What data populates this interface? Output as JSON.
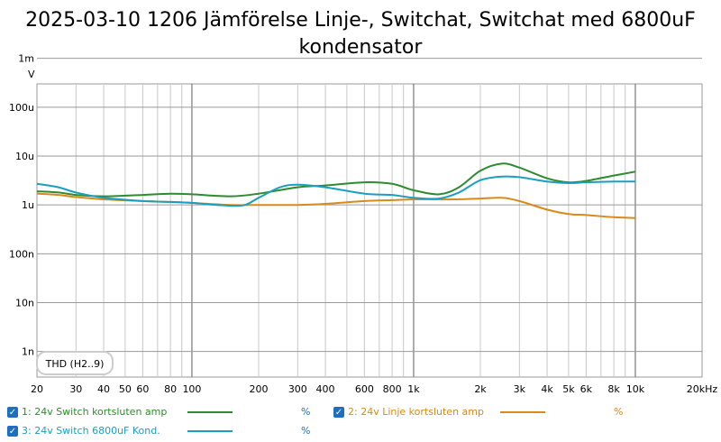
{
  "chart_data": {
    "type": "line",
    "title_line1": "2025-03-10 1206 Jämförelse Linje-, Switchat, Switchat med 6800uF",
    "title_line2": "kondensator",
    "ylabel": "V",
    "xscale": "log",
    "yscale": "log",
    "xlim": [
      20,
      20000
    ],
    "ylim": [
      3e-10,
      0.0003
    ],
    "x_ticks": [
      {
        "v": 20,
        "label": "20"
      },
      {
        "v": 30,
        "label": "30"
      },
      {
        "v": 40,
        "label": "40"
      },
      {
        "v": 50,
        "label": "50"
      },
      {
        "v": 60,
        "label": "60"
      },
      {
        "v": 80,
        "label": "80"
      },
      {
        "v": 100,
        "label": "100"
      },
      {
        "v": 200,
        "label": "200"
      },
      {
        "v": 300,
        "label": "300"
      },
      {
        "v": 400,
        "label": "400"
      },
      {
        "v": 600,
        "label": "600"
      },
      {
        "v": 800,
        "label": "800"
      },
      {
        "v": 1000,
        "label": "1k"
      },
      {
        "v": 2000,
        "label": "2k"
      },
      {
        "v": 3000,
        "label": "3k"
      },
      {
        "v": 4000,
        "label": "4k"
      },
      {
        "v": 5000,
        "label": "5k"
      },
      {
        "v": 6000,
        "label": "6k"
      },
      {
        "v": 8000,
        "label": "8k"
      },
      {
        "v": 10000,
        "label": "10k"
      },
      {
        "v": 20000,
        "label": "20kHz"
      }
    ],
    "x_minor": [
      70,
      90,
      500,
      700,
      900,
      7000,
      9000
    ],
    "y_ticks": [
      {
        "v": 1e-09,
        "label": "1n"
      },
      {
        "v": 1e-08,
        "label": "10n"
      },
      {
        "v": 1e-07,
        "label": "100n"
      },
      {
        "v": 1e-06,
        "label": "1u"
      },
      {
        "v": 1e-05,
        "label": "10u"
      },
      {
        "v": 0.0001,
        "label": "100u"
      },
      {
        "v": 0.001,
        "label": "1m"
      }
    ],
    "badge": "THD (H2..9)",
    "series": [
      {
        "name": "1: 24v Switch kortsluten amp",
        "unit": "%",
        "color": "#2e8b2e",
        "x": [
          20,
          25,
          30,
          40,
          60,
          80,
          100,
          150,
          200,
          300,
          400,
          600,
          800,
          1000,
          1300,
          1600,
          2000,
          2500,
          3000,
          4000,
          5000,
          6000,
          8000,
          10000
        ],
        "y": [
          1.9e-06,
          1.8e-06,
          1.6e-06,
          1.5e-06,
          1.6e-06,
          1.7e-06,
          1.65e-06,
          1.5e-06,
          1.7e-06,
          2.3e-06,
          2.5e-06,
          2.9e-06,
          2.7e-06,
          2e-06,
          1.65e-06,
          2.3e-06,
          5e-06,
          7e-06,
          5.8e-06,
          3.5e-06,
          2.9e-06,
          3.1e-06,
          4e-06,
          4.8e-06
        ]
      },
      {
        "name": "2: 24v Linje kortsluten amp",
        "unit": "%",
        "color": "#d88a1a",
        "x": [
          20,
          25,
          30,
          40,
          60,
          80,
          100,
          150,
          200,
          300,
          400,
          600,
          800,
          1000,
          1500,
          2000,
          2500,
          3000,
          4000,
          5000,
          6000,
          8000,
          10000
        ],
        "y": [
          1.7e-06,
          1.6e-06,
          1.45e-06,
          1.3e-06,
          1.2e-06,
          1.15e-06,
          1.1e-06,
          1e-06,
          1e-06,
          1e-06,
          1.05e-06,
          1.2e-06,
          1.25e-06,
          1.3e-06,
          1.3e-06,
          1.35e-06,
          1.4e-06,
          1.2e-06,
          8e-07,
          6.5e-07,
          6.2e-07,
          5.6e-07,
          5.4e-07
        ]
      },
      {
        "name": "3: 24v Switch 6800uF Kond.",
        "unit": "%",
        "color": "#1b9fc0",
        "x": [
          20,
          25,
          30,
          40,
          60,
          80,
          100,
          130,
          170,
          200,
          250,
          300,
          400,
          600,
          800,
          1000,
          1300,
          1600,
          2000,
          2500,
          3000,
          4000,
          5000,
          6000,
          8000,
          10000
        ],
        "y": [
          2.7e-06,
          2.3e-06,
          1.8e-06,
          1.4e-06,
          1.2e-06,
          1.15e-06,
          1.1e-06,
          1e-06,
          9.8e-07,
          1.4e-06,
          2.3e-06,
          2.6e-06,
          2.3e-06,
          1.7e-06,
          1.6e-06,
          1.4e-06,
          1.35e-06,
          1.8e-06,
          3.2e-06,
          3.8e-06,
          3.7e-06,
          3e-06,
          2.8e-06,
          2.9e-06,
          3e-06,
          3e-06
        ]
      }
    ]
  }
}
